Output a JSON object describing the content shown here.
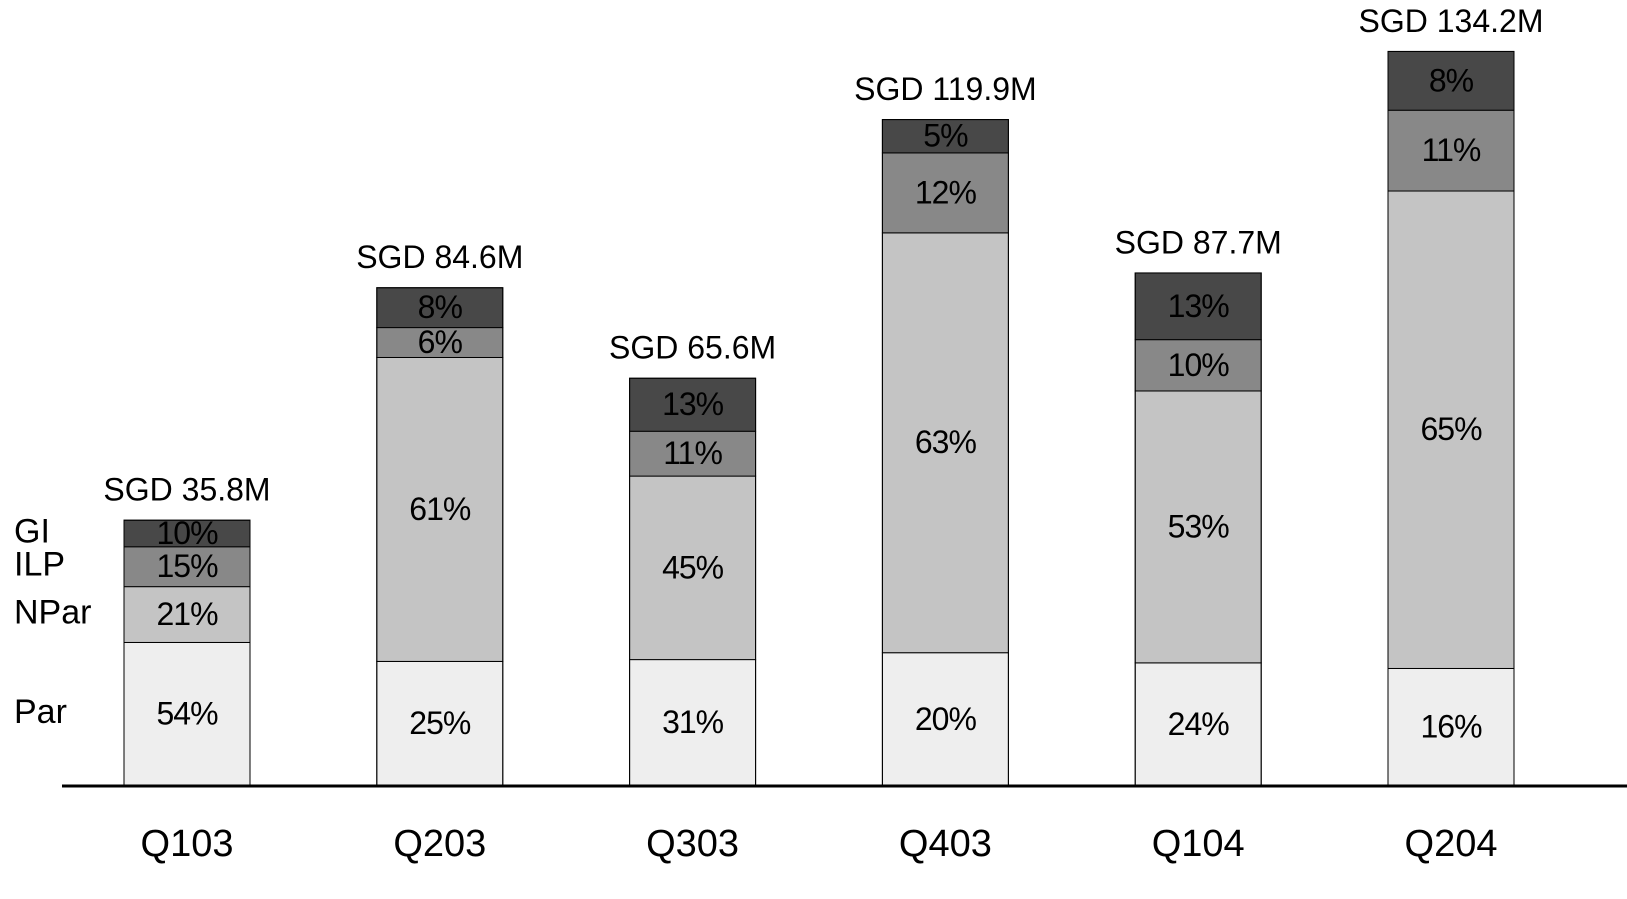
{
  "chart_data": {
    "type": "bar",
    "categories": [
      "Q103",
      "Q203",
      "Q303",
      "Q403",
      "Q104",
      "Q204"
    ],
    "series": [
      {
        "name": "Par",
        "color": "#eeeeee",
        "values": [
          54,
          25,
          31,
          20,
          24,
          16
        ],
        "value_labels": [
          "54%",
          "25%",
          "31%",
          "20%",
          "24%",
          "16%"
        ]
      },
      {
        "name": "NPar",
        "color": "#c4c4c4",
        "values": [
          21,
          61,
          45,
          63,
          53,
          65
        ],
        "value_labels": [
          "21%",
          "61%",
          "45%",
          "63%",
          "53%",
          "65%"
        ]
      },
      {
        "name": "ILP",
        "color": "#888888",
        "values": [
          15,
          6,
          11,
          12,
          10,
          11
        ],
        "value_labels": [
          "15%",
          "6%",
          "11%",
          "12%",
          "10%",
          "11%"
        ]
      },
      {
        "name": "GI",
        "color": "#484848",
        "values": [
          10,
          8,
          13,
          5,
          13,
          8
        ],
        "value_labels": [
          "10%",
          "8%",
          "13%",
          "5%",
          "13%",
          "8%"
        ]
      }
    ],
    "totals": [
      35.8,
      84.6,
      65.6,
      119.9,
      87.7,
      134.2
    ],
    "total_labels": [
      "SGD 35.8M",
      "SGD 84.6M",
      "SGD 65.6M",
      "SGD 119.9M",
      "SGD 87.7M",
      "SGD 134.2M"
    ],
    "ylim": [
      -20,
      145
    ]
  }
}
